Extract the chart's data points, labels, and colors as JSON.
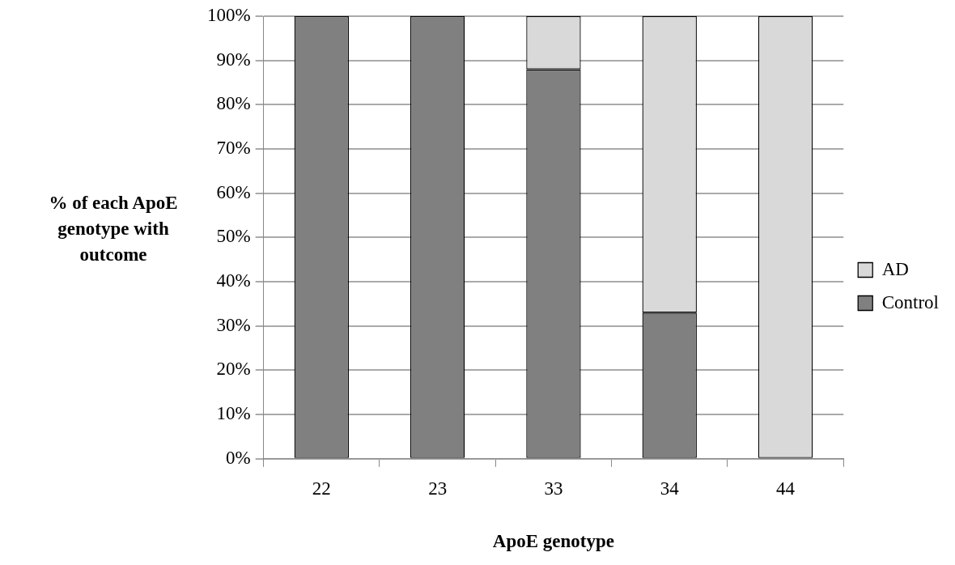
{
  "chart_data": {
    "type": "bar",
    "stacked": true,
    "xlabel": "ApoE genotype",
    "ylabel": "% of each ApoE genotype with outcome",
    "categories": [
      "22",
      "23",
      "33",
      "34",
      "44"
    ],
    "series": [
      {
        "name": "Control",
        "color": "#808080",
        "values": [
          100,
          100,
          88,
          33,
          0
        ]
      },
      {
        "name": "AD",
        "color": "#d9d9d9",
        "values": [
          0,
          0,
          12,
          67,
          100
        ]
      }
    ],
    "ylim": [
      0,
      100
    ],
    "yticks": [
      {
        "value": 0,
        "label": "0%"
      },
      {
        "value": 10,
        "label": "10%"
      },
      {
        "value": 20,
        "label": "20%"
      },
      {
        "value": 30,
        "label": "30%"
      },
      {
        "value": 40,
        "label": "40%"
      },
      {
        "value": 50,
        "label": "50%"
      },
      {
        "value": 60,
        "label": "60%"
      },
      {
        "value": 70,
        "label": "70%"
      },
      {
        "value": 80,
        "label": "80%"
      },
      {
        "value": 90,
        "label": "90%"
      },
      {
        "value": 100,
        "label": "100%"
      }
    ],
    "grid": "y",
    "legend": "right"
  }
}
